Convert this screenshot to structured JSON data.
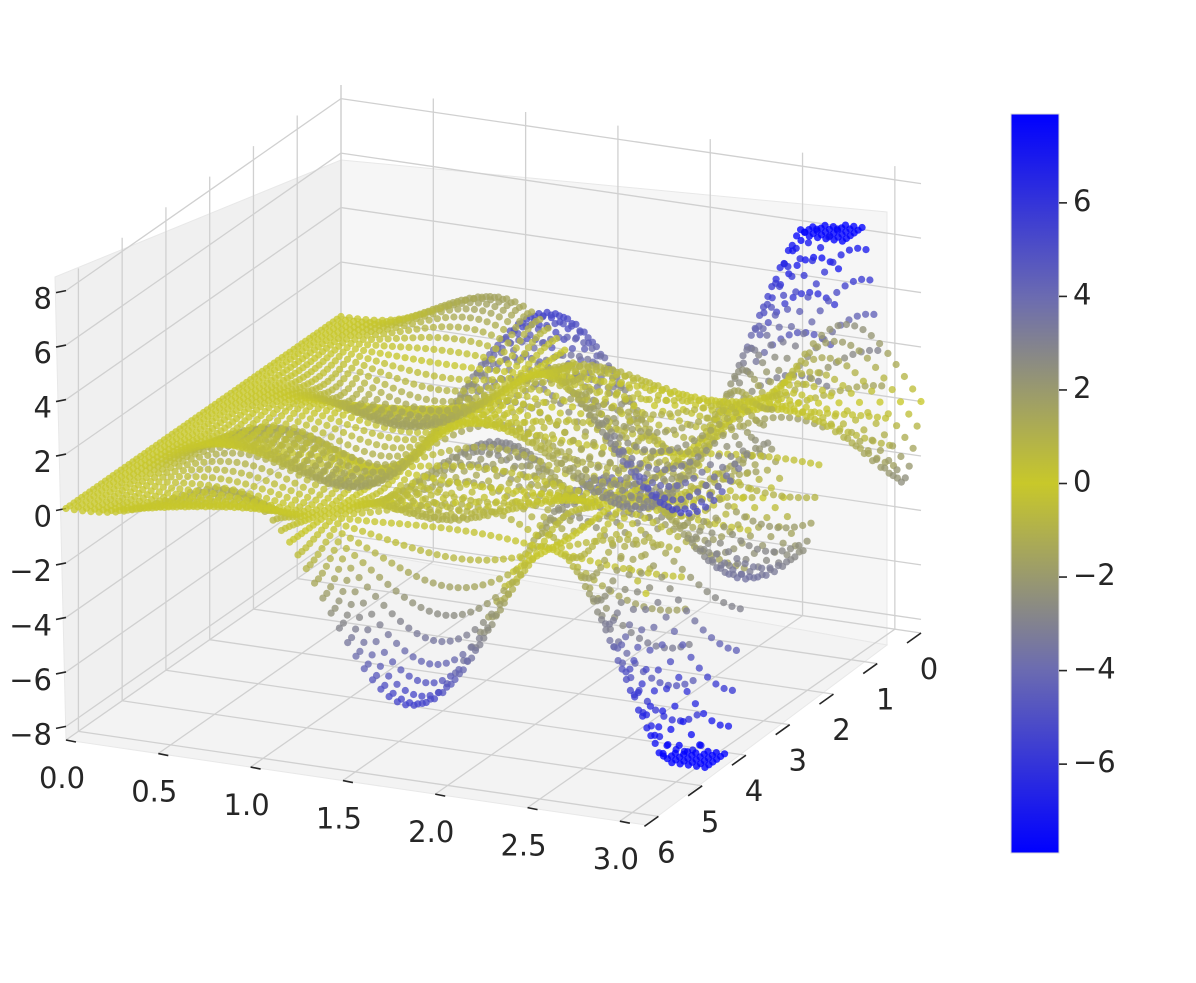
{
  "chart_data": {
    "type": "scatter",
    "dimensions": 3,
    "title": "",
    "xlabel": "",
    "ylabel": "",
    "zlabel": "",
    "xlim": [
      0,
      3.14159
    ],
    "ylim": [
      0,
      6.28318
    ],
    "zlim": [
      -8.5,
      8.5
    ],
    "x_ticks": [
      "0.0",
      "0.5",
      "1.0",
      "1.5",
      "2.0",
      "2.5",
      "3.0"
    ],
    "y_ticks": [
      "0",
      "1",
      "2",
      "3",
      "4",
      "5",
      "6"
    ],
    "z_ticks": [
      "8",
      "6",
      "4",
      "2",
      "0",
      "−2",
      "−4",
      "−6",
      "−8"
    ],
    "grid": true,
    "surface_sample": {
      "x_values": [
        0.0,
        0.5236,
        1.0472,
        1.5708,
        2.0944,
        2.618,
        3.1416
      ],
      "y_values": [
        0.0,
        1.0472,
        2.0944,
        3.1416,
        4.1888,
        5.236,
        6.2832
      ],
      "z_max": 7.9,
      "z_min": -7.9
    },
    "colorbar": {
      "range": [
        -7.9,
        7.9
      ],
      "tick_values": [
        6,
        4,
        2,
        0,
        -2,
        -4,
        -6
      ],
      "tick_labels": [
        "6",
        "4",
        "2",
        "0",
        "−2",
        "−4",
        "−6"
      ],
      "colormap": [
        "#0000ff",
        "#6c6cb0",
        "#c8c82a",
        "#6c6cb0",
        "#0000ff"
      ]
    },
    "colors": {
      "extreme": "#0000ff",
      "middle": "#c8c82a"
    }
  }
}
